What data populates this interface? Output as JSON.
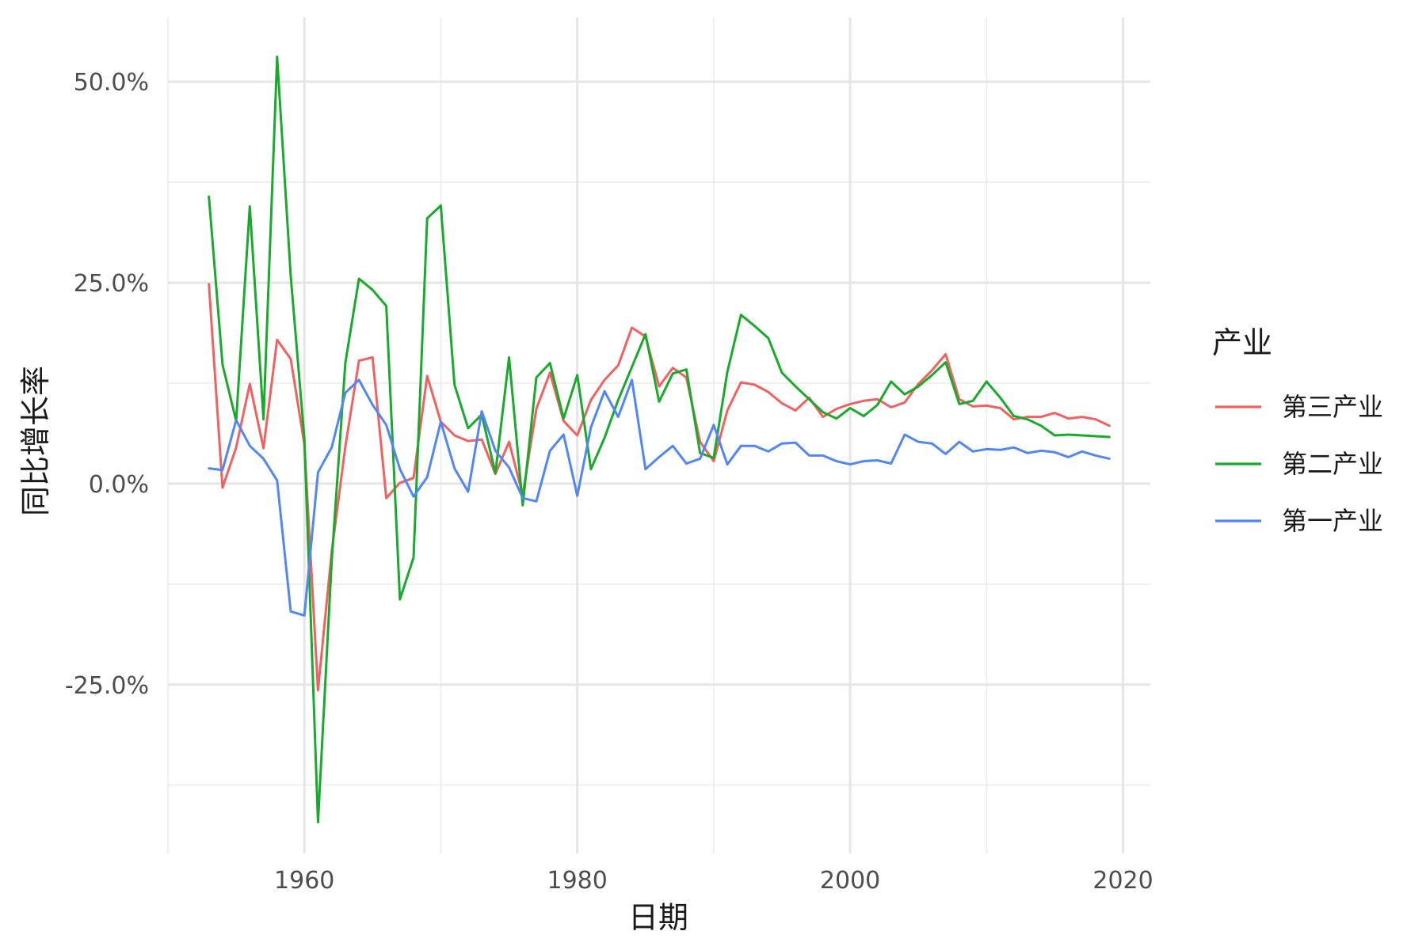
{
  "chart_data": {
    "type": "line",
    "title": "",
    "xlabel": "日期",
    "ylabel": "同比增长率",
    "xlim": [
      1950,
      2022
    ],
    "ylim": [
      -46,
      58
    ],
    "x_ticks": [
      1960,
      1980,
      2000,
      2020
    ],
    "x_tick_labels": [
      "1960",
      "1980",
      "2000",
      "2020"
    ],
    "x_minor": [
      1950,
      1970,
      1990,
      2010
    ],
    "y_ticks": [
      -25,
      0,
      25,
      50
    ],
    "y_tick_labels": [
      "-25.0%",
      "0.0%",
      "25.0%",
      "50.0%"
    ],
    "y_minor": [
      -37.5,
      -12.5,
      12.5,
      37.5
    ],
    "grid": true,
    "legend": {
      "title": "产业",
      "position": "right"
    },
    "x": [
      1953,
      1954,
      1955,
      1956,
      1957,
      1958,
      1959,
      1960,
      1961,
      1962,
      1963,
      1964,
      1965,
      1966,
      1967,
      1968,
      1969,
      1970,
      1971,
      1972,
      1973,
      1974,
      1975,
      1976,
      1977,
      1978,
      1979,
      1980,
      1981,
      1982,
      1983,
      1984,
      1985,
      1986,
      1987,
      1988,
      1989,
      1990,
      1991,
      1992,
      1993,
      1994,
      1995,
      1996,
      1997,
      1998,
      1999,
      2000,
      2001,
      2002,
      2003,
      2004,
      2005,
      2006,
      2007,
      2008,
      2009,
      2010,
      2011,
      2012,
      2013,
      2014,
      2015,
      2016,
      2017,
      2018,
      2019
    ],
    "series": [
      {
        "name": "第三产业",
        "color": "#F0615F",
        "values": [
          24.8,
          -0.5,
          4.5,
          12.4,
          4.4,
          17.9,
          15.5,
          4.9,
          -25.7,
          -8.5,
          4.6,
          15.3,
          15.7,
          -1.8,
          0.1,
          0.7,
          13.4,
          7.7,
          6.0,
          5.3,
          5.5,
          1.2,
          5.2,
          -1.4,
          9.3,
          13.8,
          7.8,
          6.0,
          10.4,
          12.9,
          14.7,
          19.4,
          18.3,
          12.1,
          14.4,
          13.2,
          5.2,
          2.8,
          9.1,
          12.6,
          12.3,
          11.4,
          10.0,
          9.1,
          10.7,
          8.3,
          9.3,
          9.9,
          10.3,
          10.5,
          9.5,
          10.1,
          12.4,
          14.1,
          16.1,
          10.5,
          9.6,
          9.7,
          9.4,
          8.0,
          8.3,
          8.3,
          8.8,
          8.1,
          8.3,
          8.0,
          7.2
        ]
      },
      {
        "name": "第二产业",
        "color": "#18AA2A",
        "values": [
          35.7,
          14.8,
          7.8,
          34.5,
          8.0,
          53.1,
          25.8,
          5.6,
          -42.1,
          -9.6,
          15.0,
          25.5,
          24.1,
          22.1,
          -14.4,
          -9.2,
          33.0,
          34.6,
          12.3,
          6.9,
          8.6,
          1.3,
          15.7,
          -2.7,
          13.2,
          15.0,
          8.1,
          13.5,
          1.8,
          5.7,
          10.4,
          14.5,
          18.6,
          10.2,
          13.7,
          14.2,
          3.8,
          3.2,
          13.9,
          21.0,
          19.6,
          18.1,
          13.8,
          12.1,
          10.5,
          8.9,
          8.1,
          9.4,
          8.4,
          9.8,
          12.7,
          11.1,
          12.1,
          13.5,
          15.1,
          9.9,
          10.3,
          12.7,
          10.7,
          8.4,
          8.0,
          7.2,
          6.0,
          6.1,
          6.0,
          5.9,
          5.8
        ]
      },
      {
        "name": "第一产业",
        "color": "#5186F5",
        "values": [
          1.9,
          1.7,
          7.9,
          4.7,
          3.1,
          0.4,
          -15.9,
          -16.4,
          1.4,
          4.5,
          11.3,
          12.9,
          9.8,
          7.3,
          1.8,
          -1.6,
          0.8,
          7.7,
          1.9,
          -1.0,
          9.0,
          4.1,
          2.0,
          -1.8,
          -2.2,
          4.1,
          6.1,
          -1.5,
          7.0,
          11.5,
          8.3,
          12.9,
          1.8,
          3.3,
          4.7,
          2.5,
          3.1,
          7.3,
          2.4,
          4.7,
          4.7,
          4.0,
          5.0,
          5.1,
          3.5,
          3.5,
          2.8,
          2.4,
          2.8,
          2.9,
          2.5,
          6.1,
          5.2,
          5.0,
          3.7,
          5.2,
          4.0,
          4.3,
          4.2,
          4.5,
          3.8,
          4.1,
          3.9,
          3.3,
          4.0,
          3.5,
          3.1
        ]
      }
    ]
  }
}
